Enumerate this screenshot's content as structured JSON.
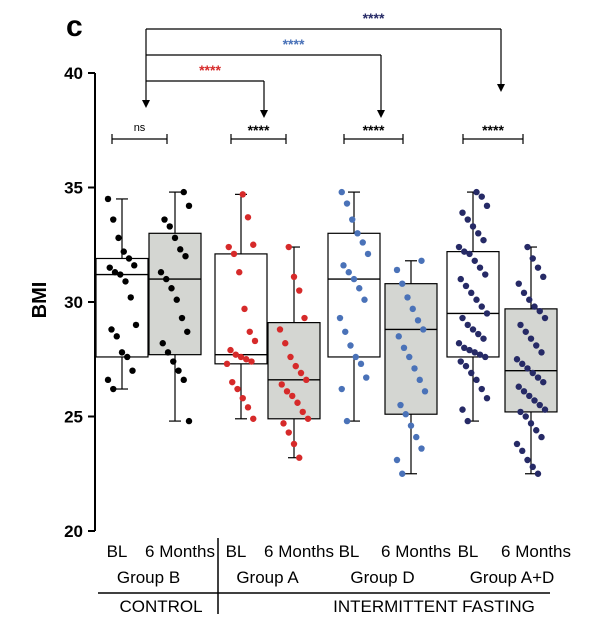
{
  "panel_label": "c",
  "chart_data": {
    "type": "box",
    "ylabel": "BMI",
    "ylim": [
      20,
      40
    ],
    "yticks": [
      20,
      25,
      30,
      35,
      40
    ],
    "point_color_by_group": {
      "Group B": "#000000",
      "Group A": "#d62a2a",
      "Group D": "#4a72b8",
      "Group A+D": "#262a66"
    },
    "boxes": [
      {
        "category": "BL",
        "group": "Group B",
        "fill": "#ffffff",
        "min": 26.2,
        "q1": 27.6,
        "median": 31.2,
        "q3": 31.9,
        "max": 34.5,
        "points": [
          34.5,
          33.6,
          32.8,
          32.2,
          31.9,
          31.6,
          31.5,
          31.3,
          31.2,
          30.9,
          30.2,
          29.0,
          28.8,
          28.5,
          27.8,
          27.6,
          27.0,
          26.6,
          26.2
        ]
      },
      {
        "category": "6 Months",
        "group": "Group B",
        "fill": "#d4d6d2",
        "min": 24.8,
        "q1": 27.7,
        "median": 31.0,
        "q3": 33.0,
        "max": 34.8,
        "points": [
          34.8,
          34.2,
          33.6,
          33.3,
          32.8,
          32.3,
          32.0,
          31.3,
          31.0,
          30.6,
          30.1,
          29.3,
          28.7,
          28.2,
          27.8,
          27.4,
          27.0,
          26.6,
          24.8
        ]
      },
      {
        "category": "BL",
        "group": "Group A",
        "fill": "#ffffff",
        "min": 24.9,
        "q1": 27.3,
        "median": 27.7,
        "q3": 32.1,
        "max": 34.7,
        "points": [
          34.7,
          33.7,
          32.5,
          32.4,
          32.1,
          31.3,
          29.7,
          28.7,
          28.3,
          27.9,
          27.7,
          27.6,
          27.5,
          27.4,
          27.3,
          26.5,
          26.2,
          25.8,
          25.4,
          24.9
        ]
      },
      {
        "category": "6 Months",
        "group": "Group A",
        "fill": "#d4d6d2",
        "min": 23.2,
        "q1": 24.9,
        "median": 26.6,
        "q3": 29.1,
        "max": 32.4,
        "points": [
          32.4,
          31.1,
          30.5,
          29.3,
          28.8,
          28.2,
          27.6,
          27.2,
          26.9,
          26.6,
          26.4,
          26.1,
          25.9,
          25.6,
          25.2,
          24.9,
          24.7,
          24.3,
          23.8,
          23.2
        ]
      },
      {
        "category": "BL",
        "group": "Group D",
        "fill": "#ffffff",
        "min": 24.8,
        "q1": 27.6,
        "median": 31.0,
        "q3": 33.0,
        "max": 34.8,
        "points": [
          34.8,
          34.3,
          33.6,
          33.0,
          32.6,
          32.1,
          31.6,
          31.3,
          31.0,
          30.6,
          30.1,
          29.3,
          28.7,
          28.1,
          27.6,
          27.3,
          26.7,
          26.2,
          24.8
        ]
      },
      {
        "category": "6 Months",
        "group": "Group D",
        "fill": "#d4d6d2",
        "min": 22.5,
        "q1": 25.1,
        "median": 28.8,
        "q3": 30.8,
        "max": 31.8,
        "points": [
          31.8,
          31.4,
          30.8,
          30.2,
          29.7,
          29.2,
          28.8,
          28.5,
          28.0,
          27.6,
          27.1,
          26.6,
          26.1,
          25.5,
          25.1,
          24.6,
          24.1,
          23.6,
          23.1,
          22.5
        ]
      },
      {
        "category": "BL",
        "group": "Group A+D",
        "fill": "#ffffff",
        "min": 24.8,
        "q1": 27.6,
        "median": 29.5,
        "q3": 32.2,
        "max": 34.8,
        "points": [
          34.8,
          34.6,
          34.2,
          33.9,
          33.6,
          33.3,
          33.0,
          32.7,
          32.4,
          32.2,
          32.1,
          31.8,
          31.5,
          31.2,
          31.0,
          30.7,
          30.4,
          30.1,
          29.8,
          29.5,
          29.3,
          29.0,
          28.8,
          28.6,
          28.4,
          28.2,
          28.0,
          27.9,
          27.8,
          27.7,
          27.6,
          27.4,
          27.2,
          26.9,
          26.6,
          26.2,
          25.8,
          25.3,
          24.8
        ]
      },
      {
        "category": "6 Months",
        "group": "Group A+D",
        "fill": "#d4d6d2",
        "min": 22.5,
        "q1": 25.2,
        "median": 27.0,
        "q3": 29.7,
        "max": 32.4,
        "points": [
          32.4,
          31.9,
          31.5,
          31.1,
          30.8,
          30.4,
          30.1,
          29.8,
          29.6,
          29.3,
          29.0,
          28.7,
          28.4,
          28.1,
          27.8,
          27.5,
          27.3,
          27.1,
          26.9,
          26.7,
          26.5,
          26.3,
          26.1,
          25.9,
          25.7,
          25.5,
          25.3,
          25.2,
          25.0,
          24.7,
          24.4,
          24.1,
          23.8,
          23.5,
          23.1,
          22.8,
          22.5
        ]
      }
    ],
    "groups": [
      "Group B",
      "Group A",
      "Group D",
      "Group A+D"
    ],
    "supergroups": [
      "CONTROL",
      "INTERMITTENT FASTING"
    ],
    "within_group_comparisons": [
      {
        "group": "Group B",
        "label": "ns"
      },
      {
        "group": "Group A",
        "label": "****"
      },
      {
        "group": "Group D",
        "label": "****"
      },
      {
        "group": "Group A+D",
        "label": "****"
      }
    ],
    "vs_control_comparisons": [
      {
        "target": "Group A",
        "label": "****",
        "color": "#d62a2a"
      },
      {
        "target": "Group D",
        "label": "****",
        "color": "#4a72b8"
      },
      {
        "target": "Group A+D",
        "label": "****",
        "color": "#262a66"
      }
    ]
  }
}
